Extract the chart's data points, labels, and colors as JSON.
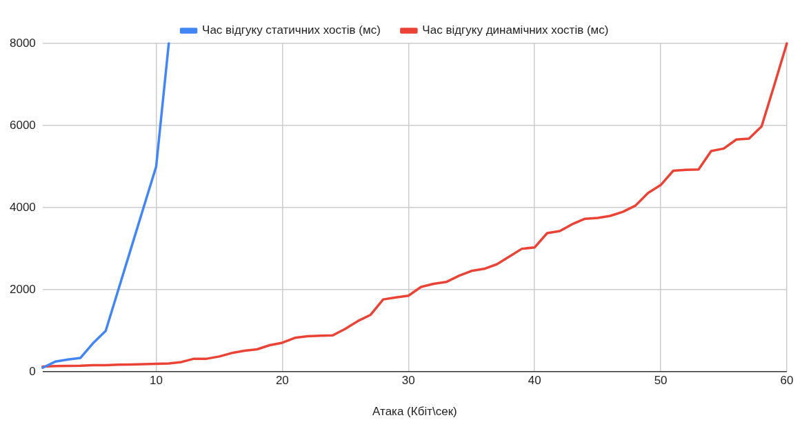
{
  "chart_data": {
    "type": "line",
    "xlabel": "Атака (Кбіт\\сек)",
    "xlim": [
      1,
      60
    ],
    "xticks": [
      10,
      20,
      30,
      40,
      50,
      60
    ],
    "ylim": [
      0,
      8000
    ],
    "yticks": [
      0,
      2000,
      4000,
      6000,
      8000
    ],
    "grid": true,
    "legend": "top",
    "marker": "none",
    "line_style": "solid",
    "series": [
      {
        "name": "Час відгуку статичних хостів (мс)",
        "color": "#4285f4",
        "x": [
          1,
          2,
          3,
          4,
          5,
          6,
          7,
          8,
          9,
          10,
          11
        ],
        "values": [
          100,
          250,
          300,
          340,
          700,
          1000,
          2000,
          3000,
          4000,
          5000,
          8000
        ]
      },
      {
        "name": "Час відгуку динамічних хостів (мс)",
        "color": "#ea4335",
        "x": [
          1,
          2,
          3,
          4,
          5,
          6,
          7,
          8,
          9,
          10,
          11,
          12,
          13,
          14,
          15,
          16,
          17,
          18,
          19,
          20,
          21,
          22,
          23,
          24,
          25,
          26,
          27,
          28,
          29,
          30,
          31,
          32,
          33,
          34,
          35,
          36,
          37,
          38,
          39,
          40,
          41,
          42,
          43,
          44,
          45,
          46,
          47,
          48,
          49,
          50,
          51,
          52,
          53,
          54,
          55,
          56,
          57,
          58,
          59,
          60
        ],
        "values": [
          130,
          140,
          145,
          150,
          165,
          165,
          175,
          180,
          190,
          195,
          205,
          240,
          320,
          320,
          375,
          460,
          515,
          550,
          650,
          710,
          830,
          870,
          880,
          890,
          1050,
          1240,
          1390,
          1765,
          1815,
          1855,
          2070,
          2145,
          2190,
          2340,
          2460,
          2510,
          2620,
          2810,
          3000,
          3030,
          3380,
          3430,
          3600,
          3730,
          3750,
          3800,
          3900,
          4050,
          4360,
          4550,
          4900,
          4920,
          4930,
          5380,
          5440,
          5660,
          5680,
          5980,
          6980,
          8000
        ]
      }
    ]
  }
}
